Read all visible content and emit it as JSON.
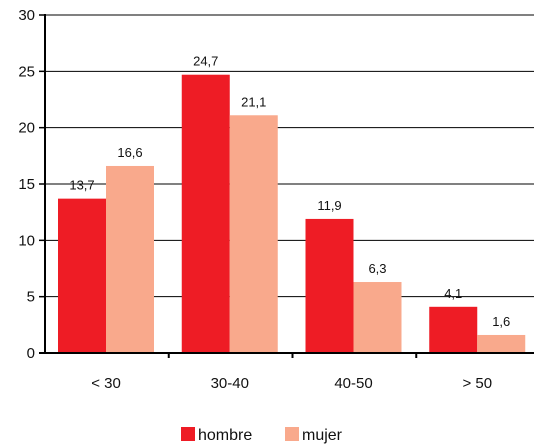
{
  "chart_data": {
    "type": "bar",
    "categories": [
      "< 30",
      "30-40",
      "40-50",
      "> 50"
    ],
    "series": [
      {
        "name": "hombre",
        "values": [
          13.7,
          24.7,
          11.9,
          4.1
        ],
        "labels": [
          "13,7",
          "24,7",
          "11,9",
          "4,1"
        ],
        "color": "#ee1c25"
      },
      {
        "name": "mujer",
        "values": [
          16.6,
          21.1,
          6.3,
          1.6
        ],
        "labels": [
          "16,6",
          "21,1",
          "6,3",
          "1,6"
        ],
        "color": "#f9a98c"
      }
    ],
    "yticks": [
      "0",
      "5",
      "10",
      "15",
      "20",
      "25",
      "30"
    ],
    "ylim": [
      0,
      30
    ],
    "grid": true,
    "legend_position": "bottom",
    "title": "",
    "xlabel": "",
    "ylabel": ""
  }
}
